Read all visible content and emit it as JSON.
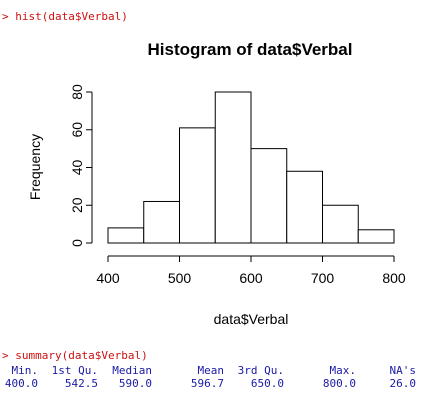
{
  "console": {
    "prompt": ">",
    "command1": "hist(data$Verbal)",
    "command2": "summary(data$Verbal)"
  },
  "summary": {
    "headers": [
      "Min.",
      "1st Qu.",
      "Median",
      "Mean",
      "3rd Qu.",
      "Max.",
      "NA's"
    ],
    "values": [
      "400.0",
      "542.5",
      "590.0",
      "596.7",
      "650.0",
      "800.0",
      "26.0"
    ]
  },
  "chart_data": {
    "type": "bar",
    "title": "Histogram of data$Verbal",
    "xlabel": "data$Verbal",
    "ylabel": "Frequency",
    "bins": [
      [
        400,
        450
      ],
      [
        450,
        500
      ],
      [
        500,
        550
      ],
      [
        550,
        600
      ],
      [
        600,
        650
      ],
      [
        650,
        700
      ],
      [
        700,
        750
      ],
      [
        750,
        800
      ]
    ],
    "values": [
      8,
      22,
      61,
      80,
      50,
      38,
      20,
      7
    ],
    "xlim": [
      400,
      800
    ],
    "ylim": [
      0,
      80
    ],
    "xticks": [
      400,
      500,
      600,
      700,
      800
    ],
    "yticks": [
      0,
      20,
      40,
      60,
      80
    ],
    "grid": false,
    "colors": {
      "fill": "#ffffff",
      "stroke": "#000000"
    }
  }
}
